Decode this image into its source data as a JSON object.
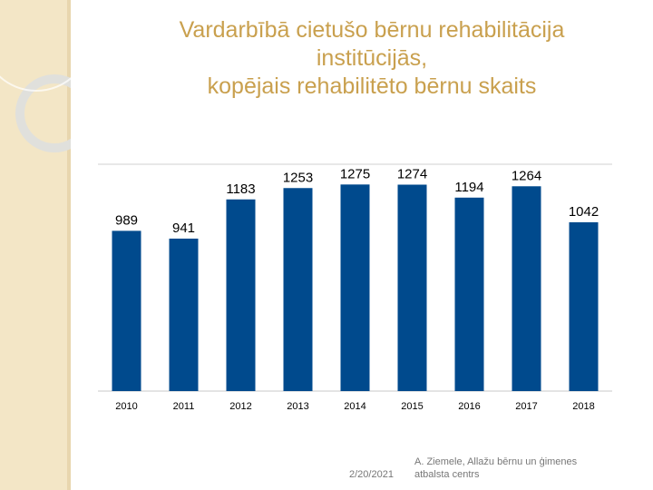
{
  "chart_data": {
    "type": "bar",
    "title": [
      "Vardarbībā cietušo bērnu rehabilitācija",
      "institūcijās,",
      "kopējais rehabilitēto bērnu skaits"
    ],
    "categories": [
      "2010",
      "2011",
      "2012",
      "2013",
      "2014",
      "2015",
      "2016",
      "2017",
      "2018"
    ],
    "values": [
      989,
      941,
      1183,
      1253,
      1275,
      1274,
      1194,
      1264,
      1042
    ],
    "color": "#004a8d",
    "ylim": [
      0,
      1400
    ]
  },
  "footer": {
    "date": "2/20/2021",
    "author": [
      "A. Ziemele, Allažu bērnu un ģimenes",
      "atbalsta centrs"
    ]
  }
}
